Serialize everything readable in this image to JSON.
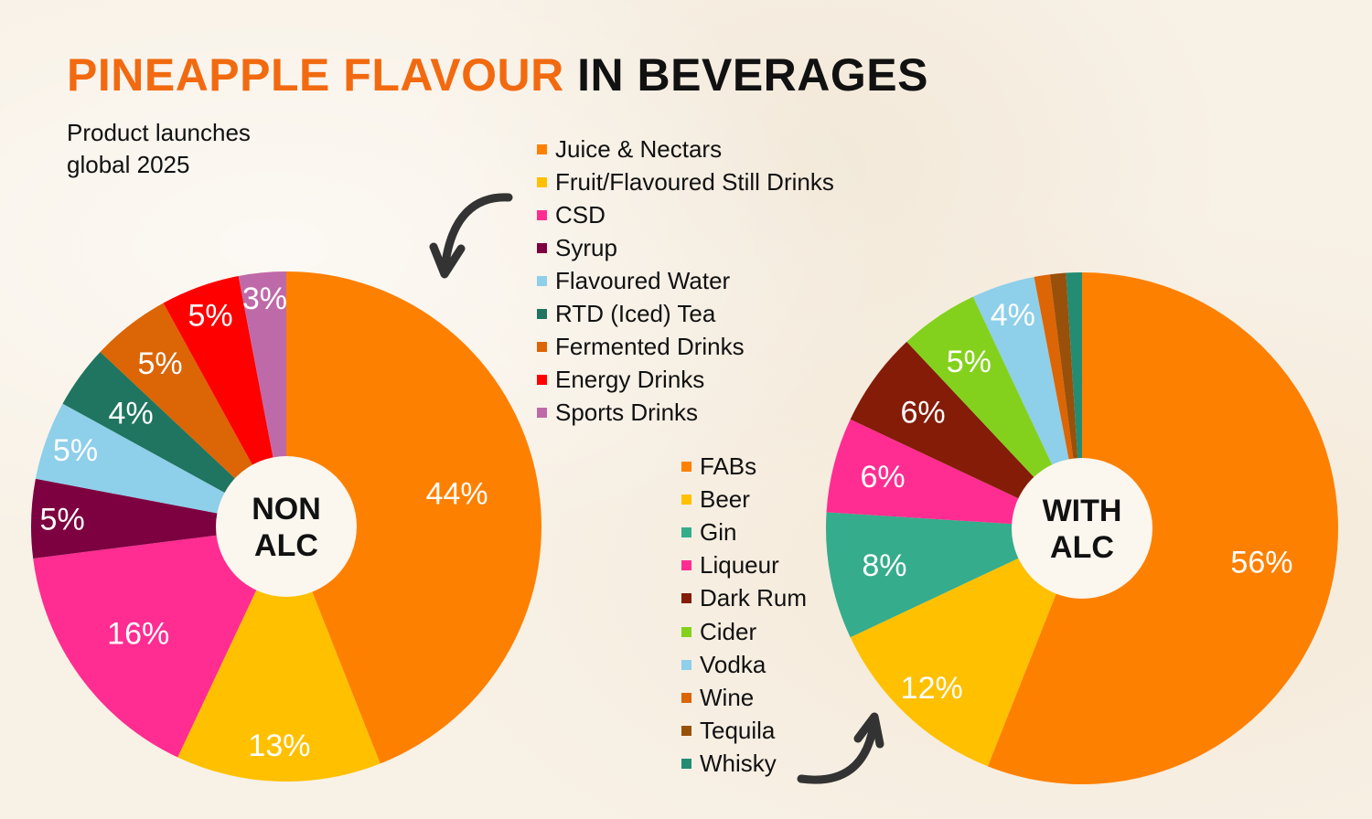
{
  "header": {
    "title_accent": "PINEAPPLE FLAVOUR",
    "title_rest": " IN BEVERAGES",
    "subtitle": "Product launches\nglobal 2025"
  },
  "colors": {
    "accent": "#f26a10",
    "text": "#111111",
    "background": "#f8f1e6"
  },
  "icons": {
    "arrow_top": "curved-arrow-down-left-icon",
    "arrow_bottom": "curved-arrow-up-right-icon"
  },
  "chart_data": [
    {
      "type": "pie",
      "variant": "donut",
      "title": "NON ALC",
      "center_label": [
        "NON",
        "ALC"
      ],
      "start_angle": "12 o'clock, clockwise",
      "categories": [
        "Juice & Nectars",
        "Fruit/Flavoured Still Drinks",
        "CSD",
        "Syrup",
        "Flavoured Water",
        "RTD (Iced) Tea",
        "Fermented Drinks",
        "Energy Drinks",
        "Sports Drinks"
      ],
      "values": [
        44,
        13,
        16,
        5,
        5,
        4,
        5,
        5,
        3
      ],
      "labels": [
        "44%",
        "13%",
        "16%",
        "5%",
        "5%",
        "4%",
        "5%",
        "5%",
        "3%"
      ],
      "colors": [
        "#fe8000",
        "#ffc000",
        "#ff2d91",
        "#7d0040",
        "#8ecfea",
        "#1f7560",
        "#dc6505",
        "#ff0000",
        "#bf6aa8"
      ],
      "legend_position": "right-top"
    },
    {
      "type": "pie",
      "variant": "donut",
      "title": "WITH ALC",
      "center_label": [
        "WITH",
        "ALC"
      ],
      "start_angle": "12 o'clock, clockwise",
      "categories": [
        "FABs",
        "Beer",
        "Gin",
        "Liqueur",
        "Dark Rum",
        "Cider",
        "Vodka",
        "Wine",
        "Tequila",
        "Whisky"
      ],
      "values": [
        56,
        12,
        8,
        6,
        6,
        5,
        4,
        1,
        1,
        1
      ],
      "labels": [
        "56%",
        "12%",
        "8%",
        "6%",
        "6%",
        "5%",
        "4%",
        "",
        "",
        ""
      ],
      "colors": [
        "#fe8000",
        "#ffc000",
        "#35ac8c",
        "#ff2d91",
        "#841c08",
        "#83d11c",
        "#8ecfea",
        "#dc6505",
        "#99500a",
        "#238c73"
      ],
      "legend_position": "left-bottom"
    }
  ]
}
